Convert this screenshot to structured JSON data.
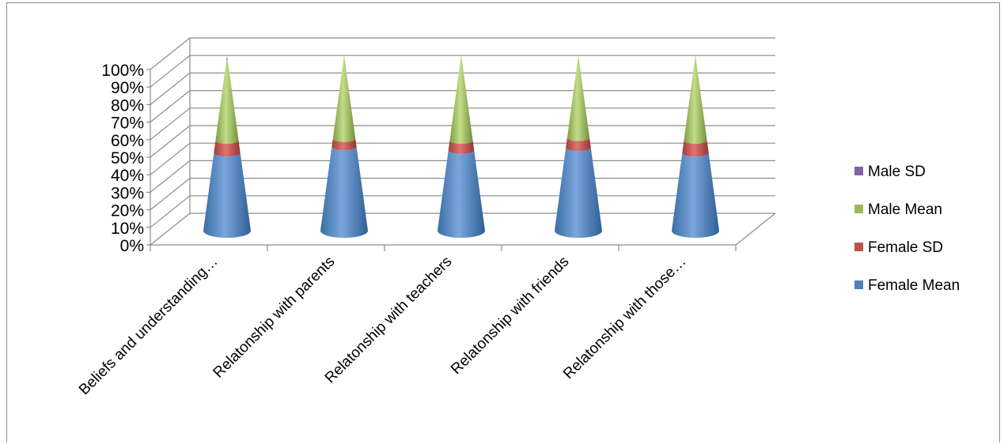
{
  "chart_data": {
    "type": "bar",
    "subtype": "stacked-100-percent-3d-cone",
    "categories": [
      "Beliefs and understanding…",
      "Relatonship with parents",
      "Relatonship with teachers",
      "Relatonship with friends",
      "Relatonship with those…"
    ],
    "y_ticks": [
      "0%",
      "10%",
      "20%",
      "30%",
      "40%",
      "50%",
      "60%",
      "70%",
      "80%",
      "90%",
      "100%"
    ],
    "ylim": [
      0,
      100
    ],
    "grid": true,
    "legend_position": "right",
    "series": [
      {
        "name": "Female Mean",
        "color": "#4f81bd",
        "values": [
          44.5,
          48.0,
          46.0,
          47.5,
          44.5
        ]
      },
      {
        "name": "Female SD",
        "color": "#c0504d",
        "values": [
          7.0,
          4.5,
          5.5,
          5.5,
          7.0
        ]
      },
      {
        "name": "Male Mean",
        "color": "#9bbb59",
        "values": [
          46.0,
          46.5,
          47.5,
          46.0,
          47.5
        ]
      },
      {
        "name": "Male SD",
        "color": "#8064a2",
        "values": [
          2.5,
          1.0,
          1.0,
          1.0,
          1.0
        ]
      }
    ],
    "legend_order": [
      "Male SD",
      "Male Mean",
      "Female SD",
      "Female Mean"
    ]
  }
}
